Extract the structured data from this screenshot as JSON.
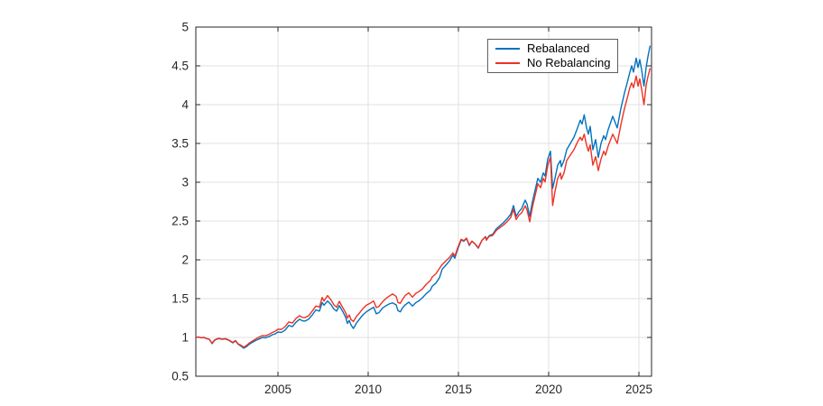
{
  "figure": {
    "background": "#ffffff"
  },
  "colors": {
    "grid": "#e0e0e0",
    "axis": "#262626",
    "tick_label": "#262626",
    "rebalanced": "#0072BD",
    "no_rebalancing": "#EE3124"
  },
  "legend": {
    "entries": [
      {
        "label": "Rebalanced",
        "color": "#0072BD"
      },
      {
        "label": "No Rebalancing",
        "color": "#EE3124"
      }
    ]
  },
  "chart_data": {
    "type": "line",
    "title": "",
    "xlabel": "",
    "ylabel": "",
    "grid": true,
    "legend_position": "inside-top-right",
    "xlim": [
      2000.45,
      2025.7
    ],
    "ylim": [
      0.5,
      5
    ],
    "xticks": [
      2005,
      2010,
      2015,
      2020,
      2025
    ],
    "xtick_labels": [
      "2005",
      "2010",
      "2015",
      "2020",
      "2025"
    ],
    "yticks": [
      0.5,
      1,
      1.5,
      2,
      2.5,
      3,
      3.5,
      4,
      4.5,
      5
    ],
    "ytick_labels": [
      "0.5",
      "1",
      "1.5",
      "2",
      "2.5",
      "3",
      "3.5",
      "4",
      "4.5",
      "5"
    ],
    "x": [
      2000.45,
      2000.6,
      2000.75,
      2000.9,
      2001.05,
      2001.2,
      2001.35,
      2001.5,
      2001.7,
      2001.9,
      2002.1,
      2002.3,
      2002.5,
      2002.65,
      2002.8,
      2002.95,
      2003.1,
      2003.25,
      2003.4,
      2003.6,
      2003.8,
      2004.0,
      2004.15,
      2004.3,
      2004.5,
      2004.7,
      2004.85,
      2005.0,
      2005.2,
      2005.4,
      2005.6,
      2005.8,
      2006.0,
      2006.2,
      2006.35,
      2006.5,
      2006.7,
      2006.9,
      2007.1,
      2007.3,
      2007.45,
      2007.55,
      2007.75,
      2007.95,
      2008.1,
      2008.25,
      2008.4,
      2008.6,
      2008.75,
      2008.85,
      2008.95,
      2009.05,
      2009.18,
      2009.35,
      2009.5,
      2009.7,
      2009.9,
      2010.1,
      2010.3,
      2010.45,
      2010.6,
      2010.8,
      2011.0,
      2011.15,
      2011.35,
      2011.55,
      2011.65,
      2011.78,
      2011.9,
      2012.05,
      2012.25,
      2012.45,
      2012.65,
      2012.8,
      2013.0,
      2013.2,
      2013.45,
      2013.55,
      2013.75,
      2013.95,
      2014.1,
      2014.3,
      2014.5,
      2014.7,
      2014.8,
      2014.95,
      2015.15,
      2015.3,
      2015.45,
      2015.6,
      2015.75,
      2015.9,
      2016.1,
      2016.3,
      2016.5,
      2016.55,
      2016.7,
      2016.9,
      2017.1,
      2017.3,
      2017.5,
      2017.7,
      2017.9,
      2018.05,
      2018.2,
      2018.35,
      2018.5,
      2018.7,
      2018.8,
      2018.95,
      2019.1,
      2019.3,
      2019.4,
      2019.55,
      2019.7,
      2019.8,
      2019.95,
      2020.1,
      2020.22,
      2020.35,
      2020.5,
      2020.65,
      2020.7,
      2020.85,
      2021.0,
      2021.2,
      2021.4,
      2021.6,
      2021.75,
      2021.85,
      2021.97,
      2022.1,
      2022.2,
      2022.3,
      2022.45,
      2022.6,
      2022.75,
      2022.9,
      2023.05,
      2023.15,
      2023.3,
      2023.55,
      2023.8,
      2024.0,
      2024.2,
      2024.35,
      2024.5,
      2024.6,
      2024.7,
      2024.85,
      2024.95,
      2025.05,
      2025.15,
      2025.28,
      2025.4,
      2025.5,
      2025.62
    ],
    "series": [
      {
        "name": "Rebalanced",
        "color": "#0072BD",
        "values": [
          1.0,
          1.005,
          0.995,
          1.0,
          0.985,
          0.975,
          0.92,
          0.965,
          0.985,
          0.975,
          0.98,
          0.96,
          0.93,
          0.955,
          0.91,
          0.89,
          0.862,
          0.88,
          0.91,
          0.94,
          0.965,
          0.985,
          1.0,
          0.995,
          1.01,
          1.035,
          1.045,
          1.07,
          1.065,
          1.095,
          1.155,
          1.14,
          1.195,
          1.235,
          1.215,
          1.21,
          1.235,
          1.29,
          1.355,
          1.34,
          1.45,
          1.415,
          1.47,
          1.42,
          1.365,
          1.34,
          1.41,
          1.33,
          1.26,
          1.18,
          1.22,
          1.16,
          1.115,
          1.185,
          1.23,
          1.29,
          1.33,
          1.36,
          1.39,
          1.305,
          1.32,
          1.38,
          1.41,
          1.43,
          1.445,
          1.42,
          1.345,
          1.33,
          1.38,
          1.42,
          1.455,
          1.405,
          1.45,
          1.47,
          1.51,
          1.56,
          1.61,
          1.66,
          1.7,
          1.77,
          1.88,
          1.93,
          1.985,
          2.06,
          2.02,
          2.13,
          2.255,
          2.24,
          2.275,
          2.185,
          2.24,
          2.21,
          2.15,
          2.25,
          2.3,
          2.26,
          2.31,
          2.33,
          2.4,
          2.44,
          2.48,
          2.53,
          2.59,
          2.7,
          2.56,
          2.62,
          2.66,
          2.77,
          2.72,
          2.56,
          2.75,
          2.95,
          3.05,
          3.0,
          3.12,
          3.08,
          3.3,
          3.4,
          2.92,
          3.05,
          3.22,
          3.28,
          3.2,
          3.28,
          3.42,
          3.5,
          3.58,
          3.7,
          3.8,
          3.75,
          3.87,
          3.7,
          3.62,
          3.72,
          3.42,
          3.55,
          3.32,
          3.5,
          3.6,
          3.55,
          3.68,
          3.85,
          3.7,
          3.95,
          4.15,
          4.28,
          4.42,
          4.5,
          4.42,
          4.6,
          4.48,
          4.58,
          4.45,
          4.24,
          4.48,
          4.62,
          4.76
        ]
      },
      {
        "name": "No Rebalancing",
        "color": "#EE3124",
        "values": [
          1.0,
          1.005,
          0.995,
          1.0,
          0.985,
          0.975,
          0.925,
          0.97,
          0.99,
          0.98,
          0.985,
          0.965,
          0.935,
          0.96,
          0.915,
          0.9,
          0.875,
          0.895,
          0.925,
          0.955,
          0.985,
          1.01,
          1.025,
          1.02,
          1.04,
          1.065,
          1.08,
          1.105,
          1.105,
          1.14,
          1.2,
          1.185,
          1.245,
          1.28,
          1.258,
          1.255,
          1.28,
          1.34,
          1.405,
          1.392,
          1.515,
          1.47,
          1.54,
          1.48,
          1.42,
          1.39,
          1.465,
          1.38,
          1.32,
          1.25,
          1.29,
          1.23,
          1.205,
          1.27,
          1.31,
          1.37,
          1.415,
          1.44,
          1.47,
          1.385,
          1.4,
          1.46,
          1.505,
          1.53,
          1.56,
          1.53,
          1.45,
          1.44,
          1.49,
          1.54,
          1.575,
          1.52,
          1.57,
          1.59,
          1.625,
          1.68,
          1.735,
          1.78,
          1.82,
          1.89,
          1.94,
          1.985,
          2.03,
          2.09,
          2.045,
          2.15,
          2.265,
          2.248,
          2.28,
          2.192,
          2.242,
          2.21,
          2.158,
          2.252,
          2.295,
          2.252,
          2.302,
          2.315,
          2.38,
          2.415,
          2.45,
          2.492,
          2.548,
          2.65,
          2.52,
          2.575,
          2.605,
          2.695,
          2.645,
          2.49,
          2.68,
          2.88,
          2.98,
          2.93,
          3.05,
          3.005,
          3.22,
          3.32,
          2.7,
          2.88,
          3.05,
          3.12,
          3.04,
          3.12,
          3.28,
          3.35,
          3.42,
          3.52,
          3.58,
          3.54,
          3.62,
          3.48,
          3.4,
          3.48,
          3.22,
          3.33,
          3.15,
          3.3,
          3.4,
          3.35,
          3.47,
          3.62,
          3.5,
          3.74,
          3.95,
          4.08,
          4.22,
          4.28,
          4.22,
          4.37,
          4.24,
          4.33,
          4.2,
          4.0,
          4.25,
          4.36,
          4.47
        ]
      }
    ]
  }
}
